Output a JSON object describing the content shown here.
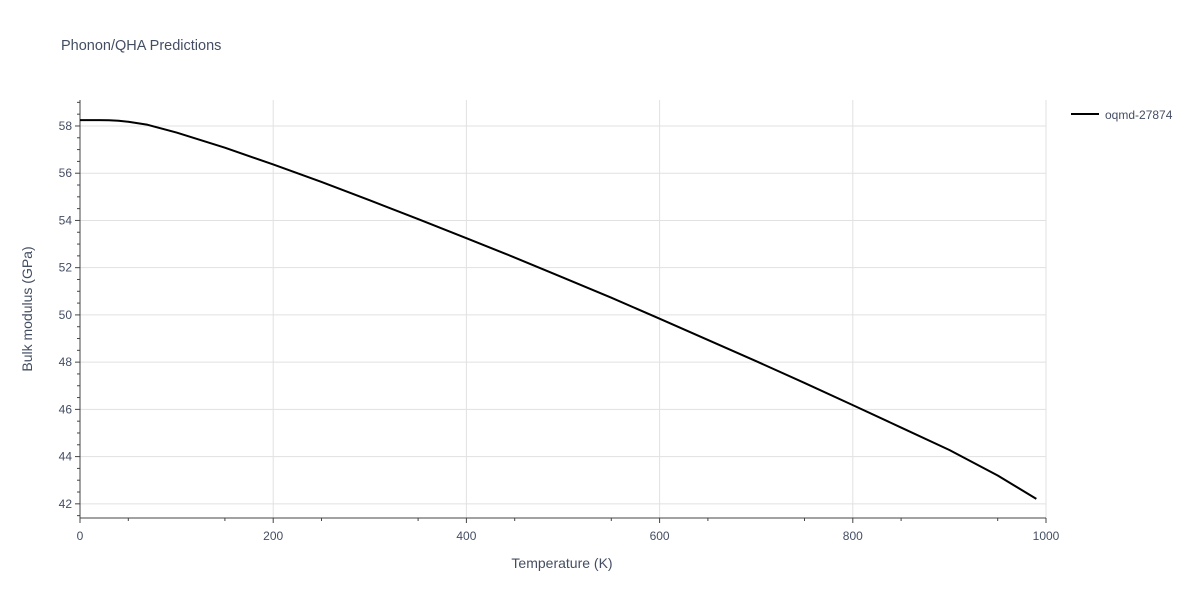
{
  "chart_data": {
    "type": "line",
    "title": "Phonon/QHA Predictions",
    "xlabel": "Temperature (K)",
    "ylabel": "Bulk modulus (GPa)",
    "xlim": [
      0,
      1000
    ],
    "ylim": [
      41.4,
      59.1
    ],
    "x_ticks": [
      0,
      200,
      400,
      600,
      800,
      1000
    ],
    "y_ticks": [
      42,
      44,
      46,
      48,
      50,
      52,
      54,
      56,
      58
    ],
    "x_tick_labels": [
      "0",
      "200",
      "400",
      "600",
      "800",
      "1000"
    ],
    "y_tick_labels": [
      "42",
      "44",
      "46",
      "48",
      "50",
      "52",
      "54",
      "56",
      "58"
    ],
    "grid": true,
    "legend_position": "top-right",
    "series": [
      {
        "name": "oqmd-27874",
        "color": "#000000",
        "x": [
          0,
          10,
          20,
          30,
          40,
          50,
          70,
          100,
          150,
          200,
          250,
          300,
          350,
          400,
          450,
          500,
          550,
          600,
          650,
          700,
          750,
          800,
          850,
          900,
          950,
          990
        ],
        "y": [
          58.25,
          58.25,
          58.25,
          58.24,
          58.22,
          58.18,
          58.05,
          57.72,
          57.08,
          56.37,
          55.63,
          54.85,
          54.06,
          53.25,
          52.43,
          51.58,
          50.73,
          49.84,
          48.94,
          48.04,
          47.12,
          46.18,
          45.23,
          44.28,
          43.2,
          42.21
        ]
      }
    ]
  }
}
